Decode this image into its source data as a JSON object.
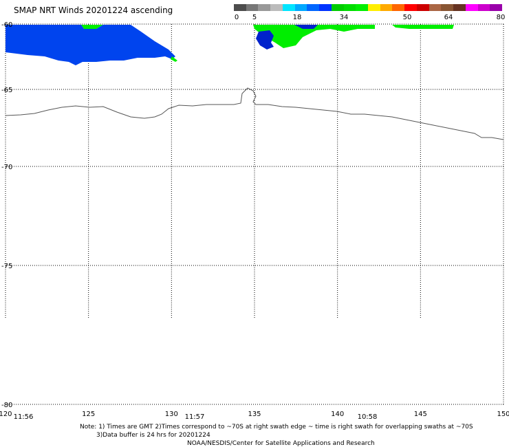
{
  "title": "SMAP NRT Winds 20201224 ascending",
  "colorbar": {
    "labels": [
      "0",
      "5",
      "18",
      "34",
      "50",
      "64",
      "80"
    ],
    "segments": [
      "#4d4d4d",
      "#777777",
      "#999999",
      "#bbbbbb",
      "#00e5ff",
      "#00a8ff",
      "#0066ff",
      "#0033ff",
      "#00cc00",
      "#00dd00",
      "#00ee00",
      "#ffee00",
      "#ffaa00",
      "#ff6600",
      "#ff0000",
      "#cc0000",
      "#aa6644",
      "#885533",
      "#663322",
      "#ff00ff",
      "#cc00cc",
      "#9900aa"
    ]
  },
  "map": {
    "lat_labels": [
      "-60",
      "-65",
      "-70",
      "-75",
      "-80"
    ],
    "lon_labels": [
      "120",
      "125",
      "130",
      "135",
      "140",
      "145",
      "150"
    ],
    "lat_values": [
      -60,
      -65,
      -70,
      -75,
      -80
    ],
    "lon_values": [
      120,
      125,
      130,
      135,
      140,
      145,
      150
    ],
    "lat_range": [
      -80,
      -60
    ],
    "lon_range": [
      120,
      150
    ],
    "time_labels": [
      "11:56",
      "11:57",
      "10:58"
    ],
    "wind_colors": {
      "blue": "#0044ee",
      "blue_dark": "#0022cc",
      "green": "#00ee00"
    },
    "coast_color": "#555555",
    "grid": true
  },
  "notes": {
    "line1": "Note: 1) Times are GMT 2)Times correspond to ~70S at right swath edge ~ time is right swath for overlapping swaths at ~70S",
    "line2": "3)Data buffer is 24 hrs for 20201224",
    "line3": "NOAA/NESDIS/Center for Satellite Applications and Research"
  }
}
